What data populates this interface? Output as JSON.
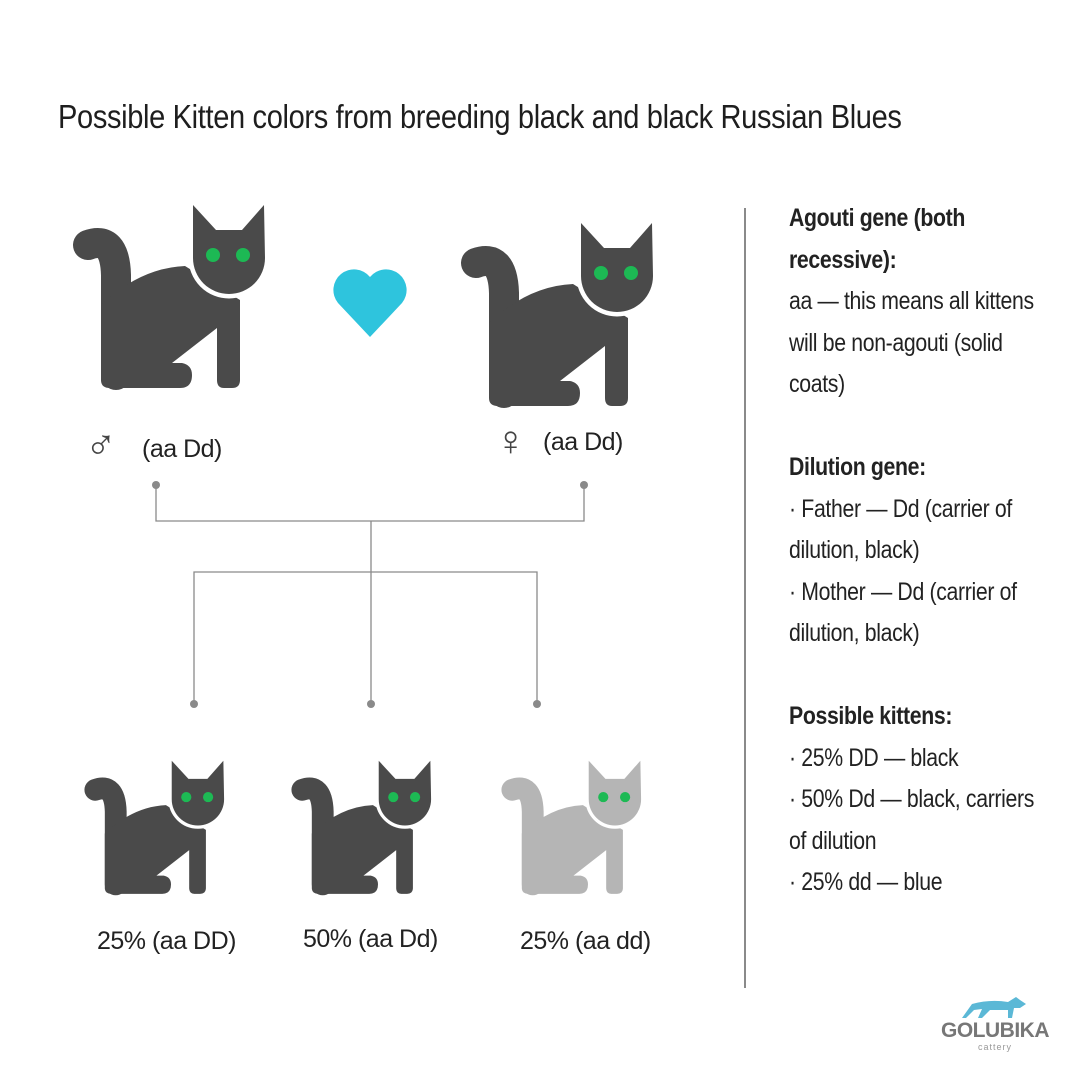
{
  "title": "Possible Kitten colors from breeding black and black Russian Blues",
  "colors": {
    "black_cat": "#4a4a4a",
    "blue_cat": "#b5b5b5",
    "eyes": "#1db954",
    "heart": "#2ec4dd",
    "lines": "#8a8a8a"
  },
  "parents": {
    "male": {
      "symbol": "♂",
      "genotype": "(aa Dd)"
    },
    "female": {
      "symbol": "♀",
      "genotype": "(aa Dd)"
    }
  },
  "kittens": [
    {
      "label": "25% (aa DD)",
      "color": "black"
    },
    {
      "label": "50% (aa Dd)",
      "color": "black"
    },
    {
      "label": "25% (aa dd)",
      "color": "blue"
    }
  ],
  "side": {
    "agouti_heading": "Agouti gene (both recessive):",
    "agouti_text": "aa — this means all kittens will be non-agouti (solid coats)",
    "dilution_heading": "Dilution gene:",
    "dilution_items": [
      "· Father — Dd (carrier of dilution, black)",
      "· Mother — Dd (carrier of dilution, black)"
    ],
    "kittens_heading": "Possible kittens:",
    "kittens_items": [
      "· 25% DD — black",
      "· 50% Dd — black, carriers of dilution",
      "· 25% dd — blue"
    ]
  },
  "logo": {
    "name": "GOLUBIKA",
    "sub": "cattery"
  }
}
